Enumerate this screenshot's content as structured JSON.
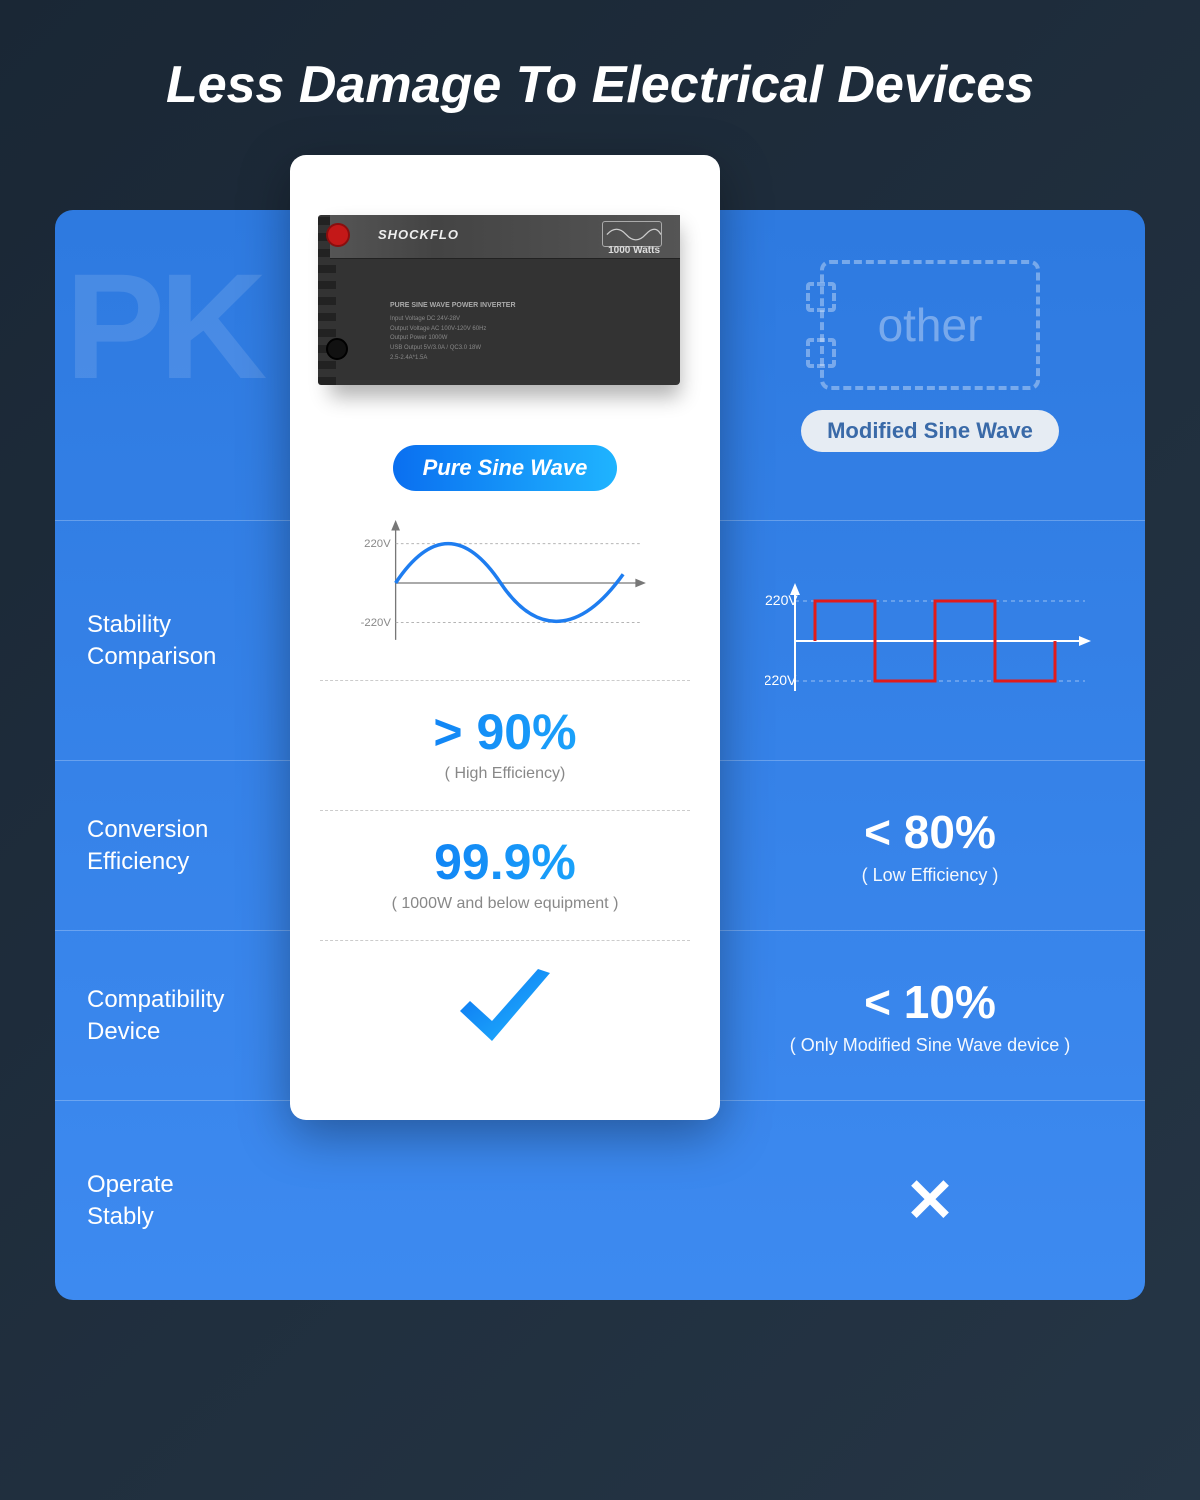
{
  "title": "Less Damage To Electrical Devices",
  "bg_left_text": "PK",
  "product": {
    "brand": "SHOCKFLO",
    "watt_label": "1000 Watts",
    "spec_title": "PURE SINE WAVE POWER INVERTER",
    "specs": [
      "Input Voltage   DC 24V-28V",
      "Output Voltage  AC 100V-120V 60Hz",
      "Output Power    1000W",
      "USB Output      5V/3.0A / QC3.0 18W",
      "                2.5-2.4A*1.5A"
    ]
  },
  "left_pill": "Pure Sine Wave",
  "right_pill": "Modified Sine Wave",
  "other_label": "other",
  "rows": {
    "stability": {
      "label": "Stability\nComparison",
      "left_upper": "220V",
      "left_lower": "-220V",
      "right_upper": "220V",
      "right_lower": "-220V",
      "sine_color": "#1e7df0",
      "square_color": "#e11b1b"
    },
    "conversion": {
      "label": "Conversion\nEfficiency",
      "left_big": "> 90%",
      "left_sub": "( High Efficiency)",
      "right_big": "< 80%",
      "right_sub": "( Low Efficiency )"
    },
    "compat": {
      "label": "Compatibility\nDevice",
      "left_big": "99.9%",
      "left_sub": "( 1000W and below equipment )",
      "right_big": "< 10%",
      "right_sub": "( Only Modified Sine Wave device )"
    },
    "operate": {
      "label": "Operate\nStably",
      "right_mark": "✕"
    }
  },
  "colors": {
    "grad_a": "#0a6ff0",
    "grad_b": "#22b8ff"
  }
}
